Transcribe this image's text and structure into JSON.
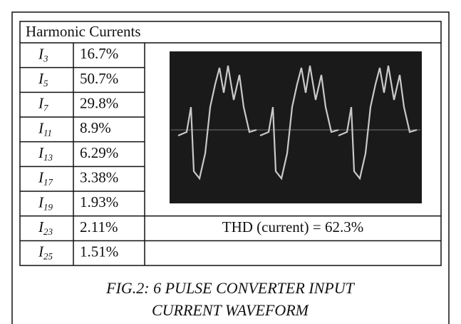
{
  "table": {
    "title": "Harmonic Currents",
    "rows": [
      {
        "symbol": "I",
        "sub": "3",
        "value": "16.7%"
      },
      {
        "symbol": "I",
        "sub": "5",
        "value": "50.7%"
      },
      {
        "symbol": "I",
        "sub": "7",
        "value": "29.8%"
      },
      {
        "symbol": "I",
        "sub": "11",
        "value": "8.9%"
      },
      {
        "symbol": "I",
        "sub": "13",
        "value": "6.29%"
      },
      {
        "symbol": "I",
        "sub": "17",
        "value": "3.38%"
      },
      {
        "symbol": "I",
        "sub": "19",
        "value": "1.93%"
      },
      {
        "symbol": "I",
        "sub": "23",
        "value": "2.11%"
      },
      {
        "symbol": "I",
        "sub": "25",
        "value": "1.51%"
      }
    ],
    "thd": "THD (current) = 62.3%"
  },
  "caption": {
    "line1": "FIG.2: 6 PULSE CONVERTER INPUT",
    "line2": "CURRENT WAVEFORM"
  }
}
